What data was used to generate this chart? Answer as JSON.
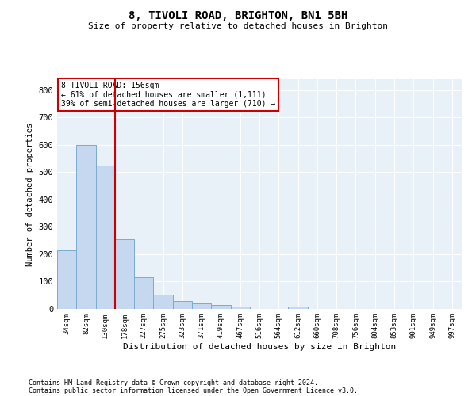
{
  "title": "8, TIVOLI ROAD, BRIGHTON, BN1 5BH",
  "subtitle": "Size of property relative to detached houses in Brighton",
  "xlabel": "Distribution of detached houses by size in Brighton",
  "ylabel": "Number of detached properties",
  "footnote1": "Contains HM Land Registry data © Crown copyright and database right 2024.",
  "footnote2": "Contains public sector information licensed under the Open Government Licence v3.0.",
  "bar_color": "#c5d8ef",
  "bar_edge_color": "#7aabcf",
  "bg_color": "#e8f0f8",
  "grid_color": "#ffffff",
  "vline_color": "#cc0000",
  "vline_x": 2.5,
  "annotation_text": "8 TIVOLI ROAD: 156sqm\n← 61% of detached houses are smaller (1,111)\n39% of semi-detached houses are larger (710) →",
  "annotation_box_color": "#cc0000",
  "bin_labels": [
    "34sqm",
    "82sqm",
    "130sqm",
    "178sqm",
    "227sqm",
    "275sqm",
    "323sqm",
    "371sqm",
    "419sqm",
    "467sqm",
    "516sqm",
    "564sqm",
    "612sqm",
    "660sqm",
    "708sqm",
    "756sqm",
    "804sqm",
    "853sqm",
    "901sqm",
    "949sqm",
    "997sqm"
  ],
  "bar_heights": [
    215,
    600,
    525,
    255,
    115,
    52,
    30,
    20,
    15,
    10,
    0,
    0,
    10,
    0,
    0,
    0,
    0,
    0,
    0,
    0,
    0
  ],
  "ylim": [
    0,
    840
  ],
  "yticks": [
    0,
    100,
    200,
    300,
    400,
    500,
    600,
    700,
    800
  ]
}
